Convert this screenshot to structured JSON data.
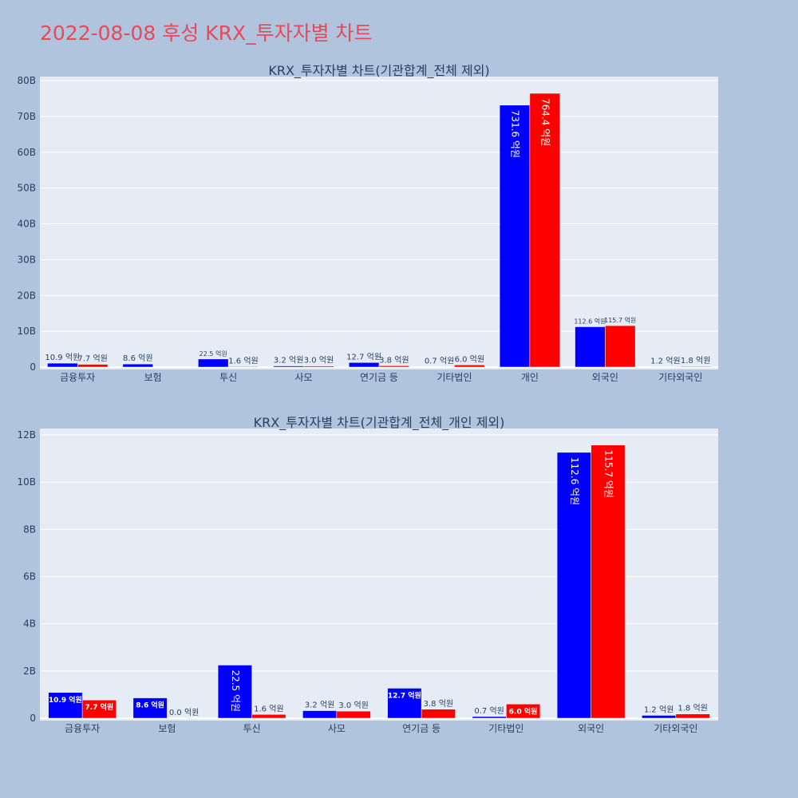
{
  "page": {
    "title": "2022-08-08 후성 KRX_투자자별 차트"
  },
  "colors": {
    "series_a": "#0000ff",
    "series_b": "#ff0000",
    "plot_bg": "#e5ecf6",
    "page_bg": "#b0c4de",
    "title": "#e8495a"
  },
  "chart_data": [
    {
      "type": "bar",
      "title": "KRX_투자자별 차트(기관합계_전체 제외)",
      "categories": [
        "금융투자",
        "보험",
        "투신",
        "사모",
        "연기금 등",
        "기타법인",
        "개인",
        "외국인",
        "기타외국인"
      ],
      "series": [
        {
          "values": [
            1090000000,
            860000000,
            2250000000,
            320000000,
            1270000000,
            70000000,
            73160000000,
            11260000000,
            120000000
          ],
          "labels": [
            "10.9 억원",
            "8.6 억원",
            "22.5 억원",
            "3.2 억원",
            "12.7 억원",
            "0.7 억원",
            "731.6 억원",
            "112.6 억원",
            "1.2 억원"
          ]
        },
        {
          "values": [
            770000000,
            0,
            160000000,
            300000000,
            380000000,
            600000000,
            76440000000,
            11570000000,
            180000000
          ],
          "labels": [
            "7.7 억원",
            "",
            "1.6 억원",
            "3.0 억원",
            "3.8 억원",
            "6.0 억원",
            "764.4 억원",
            "115.7 억원",
            "1.8 억원"
          ]
        }
      ],
      "ylim": [
        0,
        80000000000
      ],
      "yticks": [
        "0",
        "10B",
        "20B",
        "30B",
        "40B",
        "50B",
        "60B",
        "70B",
        "80B"
      ],
      "grid": true
    },
    {
      "type": "bar",
      "title": "KRX_투자자별 차트(기관합계_전체_개인 제외)",
      "categories": [
        "금융투자",
        "보험",
        "투신",
        "사모",
        "연기금 등",
        "기타법인",
        "외국인",
        "기타외국인"
      ],
      "series": [
        {
          "values": [
            1090000000,
            860000000,
            2250000000,
            320000000,
            1270000000,
            70000000,
            11260000000,
            120000000
          ],
          "labels": [
            "10.9 억원",
            "8.6 억원",
            "22.5 억원",
            "3.2 억원",
            "12.7 억원",
            "0.7 억원",
            "112.6 억원",
            "1.2 억원"
          ]
        },
        {
          "values": [
            770000000,
            0,
            160000000,
            300000000,
            380000000,
            600000000,
            11570000000,
            180000000
          ],
          "labels": [
            "7.7 억원",
            "0.0 억원",
            "1.6 억원",
            "3.0 억원",
            "3.8 억원",
            "6.0 억원",
            "115.7 억원",
            "1.8 억원"
          ]
        }
      ],
      "ylim": [
        0,
        12000000000
      ],
      "yticks": [
        "0",
        "2B",
        "4B",
        "6B",
        "8B",
        "10B",
        "12B"
      ],
      "grid": true
    }
  ]
}
